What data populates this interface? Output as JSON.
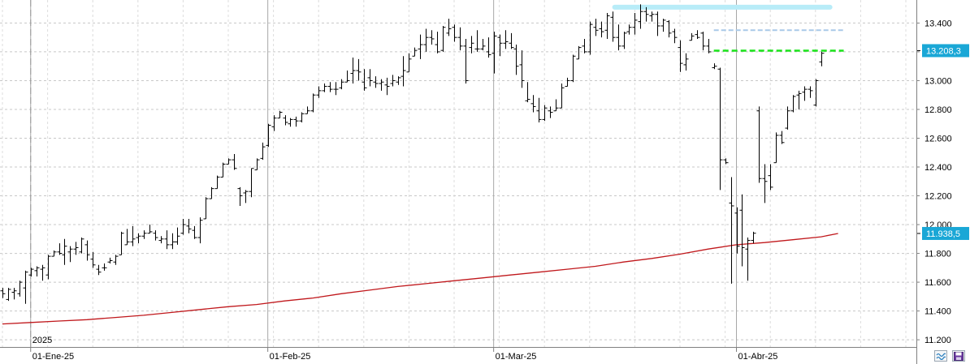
{
  "chart_data": {
    "type": "ohlc",
    "y_ticks": [
      "13.400",
      "13.200",
      "13.000",
      "12.800",
      "12.600",
      "12.400",
      "12.200",
      "12.000",
      "11.800",
      "11.600",
      "11.400",
      "11.200"
    ],
    "y_tick_values": [
      13400,
      13200,
      13000,
      12800,
      12600,
      12400,
      12200,
      12000,
      11800,
      11600,
      11400,
      11200
    ],
    "ylim": [
      11150,
      13560
    ],
    "x_labels": [
      {
        "text": "01-Ene-25",
        "bar": 5
      },
      {
        "text": "01-Feb-25",
        "bar": 47
      },
      {
        "text": "01-Mar-25",
        "bar": 87
      },
      {
        "text": "01-Abr-25",
        "bar": 130
      }
    ],
    "year_label": {
      "text": "2025",
      "bar": 5
    },
    "bar_count": 160,
    "ohlc": [
      [
        0,
        11540,
        11560,
        11490,
        11520
      ],
      [
        1,
        11480,
        11560,
        11470,
        11550
      ],
      [
        2,
        11530,
        11560,
        11480,
        11540
      ],
      [
        3,
        11520,
        11610,
        11500,
        11600
      ],
      [
        4,
        11560,
        11680,
        11450,
        11670
      ],
      [
        5,
        11650,
        11700,
        11640,
        11690
      ],
      [
        6,
        11680,
        11710,
        11640,
        11700
      ],
      [
        7,
        11690,
        11720,
        11610,
        11700
      ],
      [
        8,
        11650,
        11790,
        11620,
        11780
      ],
      [
        9,
        11780,
        11820,
        11780,
        11810
      ],
      [
        10,
        11810,
        11870,
        11790,
        11800
      ],
      [
        11,
        11790,
        11900,
        11720,
        11850
      ],
      [
        12,
        11810,
        11850,
        11740,
        11830
      ],
      [
        13,
        11830,
        11880,
        11790,
        11840
      ],
      [
        14,
        11810,
        11910,
        11800,
        11900
      ],
      [
        15,
        11860,
        11890,
        11750,
        11790
      ],
      [
        16,
        11760,
        11810,
        11700,
        11720
      ],
      [
        17,
        11690,
        11720,
        11650,
        11670
      ],
      [
        18,
        11700,
        11730,
        11680,
        11700
      ],
      [
        19,
        11740,
        11770,
        11730,
        11750
      ],
      [
        20,
        11740,
        11790,
        11720,
        11780
      ],
      [
        21,
        11790,
        11950,
        11790,
        11940
      ],
      [
        22,
        11860,
        11970,
        11860,
        11880
      ],
      [
        23,
        11880,
        11990,
        11850,
        11900
      ],
      [
        24,
        11910,
        11940,
        11870,
        11920
      ],
      [
        25,
        11920,
        11960,
        11900,
        11940
      ],
      [
        26,
        11940,
        12000,
        11940,
        11950
      ],
      [
        27,
        11940,
        11960,
        11890,
        11910
      ],
      [
        28,
        11890,
        11920,
        11870,
        11900
      ],
      [
        29,
        11900,
        11960,
        11830,
        11860
      ],
      [
        30,
        11860,
        11940,
        11830,
        11880
      ],
      [
        31,
        11880,
        11980,
        11860,
        11920
      ],
      [
        32,
        11940,
        12040,
        11930,
        12000
      ],
      [
        33,
        11990,
        12040,
        11940,
        11970
      ],
      [
        34,
        11960,
        11990,
        11900,
        11910
      ],
      [
        35,
        11910,
        12050,
        11870,
        12030
      ],
      [
        36,
        12040,
        12190,
        12040,
        12180
      ],
      [
        37,
        12180,
        12260,
        12180,
        12250
      ],
      [
        38,
        12250,
        12340,
        12250,
        12330
      ],
      [
        39,
        12330,
        12430,
        12330,
        12420
      ],
      [
        40,
        12420,
        12460,
        12420,
        12450
      ],
      [
        41,
        12450,
        12490,
        12380,
        12390
      ],
      [
        42,
        12250,
        12260,
        12130,
        12200
      ],
      [
        43,
        12220,
        12240,
        12150,
        12230
      ],
      [
        44,
        12230,
        12390,
        12190,
        12390
      ],
      [
        45,
        12380,
        12460,
        12380,
        12450
      ],
      [
        46,
        12460,
        12570,
        12450,
        12540
      ],
      [
        47,
        12550,
        12700,
        12540,
        12690
      ],
      [
        48,
        12680,
        12760,
        12650,
        12740
      ],
      [
        49,
        12740,
        12790,
        12740,
        12780
      ],
      [
        50,
        12740,
        12760,
        12690,
        12710
      ],
      [
        51,
        12700,
        12740,
        12680,
        12730
      ],
      [
        52,
        12730,
        12750,
        12680,
        12720
      ],
      [
        53,
        12720,
        12780,
        12710,
        12770
      ],
      [
        54,
        12770,
        12820,
        12770,
        12790
      ],
      [
        55,
        12790,
        12910,
        12780,
        12900
      ],
      [
        56,
        12900,
        12960,
        12880,
        12930
      ],
      [
        57,
        12930,
        12980,
        12920,
        12960
      ],
      [
        58,
        12960,
        12990,
        12920,
        12940
      ],
      [
        59,
        12940,
        12990,
        12900,
        12940
      ],
      [
        60,
        12950,
        13010,
        12940,
        12990
      ],
      [
        61,
        12990,
        13070,
        12990,
        13000
      ],
      [
        62,
        13050,
        13160,
        12980,
        13070
      ],
      [
        63,
        13070,
        13150,
        13000,
        13060
      ],
      [
        64,
        12990,
        13080,
        12930,
        12950
      ],
      [
        65,
        13020,
        13080,
        12960,
        13000
      ],
      [
        66,
        12990,
        13030,
        12950,
        12980
      ],
      [
        67,
        12980,
        13010,
        12930,
        12990
      ],
      [
        68,
        12970,
        13020,
        12900,
        12960
      ],
      [
        69,
        12980,
        13040,
        12960,
        13000
      ],
      [
        70,
        12990,
        13030,
        12970,
        13020
      ],
      [
        71,
        13030,
        13170,
        12960,
        13070
      ],
      [
        72,
        13060,
        13190,
        13060,
        13150
      ],
      [
        73,
        13170,
        13230,
        13170,
        13210
      ],
      [
        74,
        13220,
        13320,
        13150,
        13250
      ],
      [
        75,
        13250,
        13360,
        13200,
        13300
      ],
      [
        76,
        13300,
        13350,
        13250,
        13290
      ],
      [
        77,
        13250,
        13340,
        13190,
        13200
      ],
      [
        78,
        13210,
        13380,
        13200,
        13370
      ],
      [
        79,
        13330,
        13430,
        13310,
        13360
      ],
      [
        80,
        13370,
        13390,
        13270,
        13300
      ],
      [
        81,
        13300,
        13370,
        13210,
        13240
      ],
      [
        82,
        13240,
        13290,
        12980,
        13000
      ],
      [
        83,
        13230,
        13310,
        13190,
        13260
      ],
      [
        84,
        13220,
        13350,
        13200,
        13220
      ],
      [
        85,
        13220,
        13290,
        13210,
        13240
      ],
      [
        86,
        13200,
        13300,
        13160,
        13180
      ],
      [
        87,
        13190,
        13340,
        13050,
        13310
      ],
      [
        88,
        13300,
        13320,
        13170,
        13260
      ],
      [
        89,
        13260,
        13350,
        13220,
        13270
      ],
      [
        90,
        13260,
        13330,
        13220,
        13230
      ],
      [
        91,
        13220,
        13250,
        13040,
        13100
      ],
      [
        92,
        13110,
        13210,
        12950,
        13000
      ],
      [
        93,
        12860,
        12990,
        12850,
        12870
      ],
      [
        94,
        12840,
        12900,
        12780,
        12820
      ],
      [
        95,
        12790,
        12880,
        12710,
        12730
      ],
      [
        96,
        12730,
        12830,
        12720,
        12810
      ],
      [
        97,
        12790,
        12820,
        12740,
        12780
      ],
      [
        98,
        12790,
        12870,
        12790,
        12810
      ],
      [
        99,
        12810,
        12980,
        12810,
        12950
      ],
      [
        100,
        12960,
        13020,
        12960,
        13000
      ],
      [
        101,
        13000,
        13180,
        12990,
        13170
      ],
      [
        102,
        13150,
        13240,
        13150,
        13230
      ],
      [
        103,
        13240,
        13290,
        13190,
        13200
      ],
      [
        104,
        13200,
        13410,
        13180,
        13390
      ],
      [
        105,
        13370,
        13430,
        13310,
        13350
      ],
      [
        106,
        13360,
        13410,
        13300,
        13340
      ],
      [
        107,
        13350,
        13470,
        13290,
        13450
      ],
      [
        108,
        13440,
        13480,
        13270,
        13300
      ],
      [
        109,
        13300,
        13390,
        13210,
        13240
      ],
      [
        110,
        13240,
        13340,
        13220,
        13330
      ],
      [
        111,
        13340,
        13390,
        13320,
        13370
      ],
      [
        112,
        13370,
        13470,
        13320,
        13420
      ],
      [
        113,
        13410,
        13530,
        13360,
        13480
      ],
      [
        114,
        13480,
        13510,
        13410,
        13460
      ],
      [
        115,
        13450,
        13480,
        13410,
        13460
      ],
      [
        116,
        13460,
        13480,
        13310,
        13380
      ],
      [
        117,
        13380,
        13430,
        13340,
        13420
      ],
      [
        118,
        13410,
        13420,
        13300,
        13330
      ],
      [
        119,
        13340,
        13360,
        13260,
        13300
      ],
      [
        120,
        13230,
        13280,
        13060,
        13120
      ],
      [
        121,
        13110,
        13190,
        13070,
        13150
      ],
      [
        122,
        13280,
        13330,
        13280,
        13310
      ],
      [
        123,
        13320,
        13350,
        13290,
        13300
      ],
      [
        124,
        13330,
        13340,
        13210,
        13240
      ],
      [
        125,
        13240,
        13290,
        13190,
        13200
      ],
      [
        126,
        13090,
        13120,
        13080,
        13100
      ],
      [
        127,
        13080,
        13090,
        12240,
        12450
      ],
      [
        128,
        12450,
        12460,
        12420,
        12430
      ],
      [
        129,
        12150,
        12330,
        11590,
        12130
      ],
      [
        130,
        12080,
        12120,
        11800,
        11850
      ],
      [
        131,
        12100,
        12210,
        11710,
        11840
      ],
      [
        132,
        11830,
        11910,
        11610,
        11890
      ],
      [
        133,
        11890,
        11950,
        11870,
        11940
      ],
      [
        134,
        12790,
        12820,
        12290,
        12320
      ],
      [
        135,
        12320,
        12420,
        12150,
        12300
      ],
      [
        136,
        12340,
        12420,
        12240,
        12260
      ],
      [
        137,
        12430,
        12640,
        12430,
        12620
      ],
      [
        138,
        12620,
        12650,
        12560,
        12570
      ],
      [
        139,
        12670,
        12820,
        12660,
        12790
      ],
      [
        140,
        12790,
        12900,
        12780,
        12890
      ],
      [
        141,
        12900,
        12930,
        12800,
        12910
      ],
      [
        142,
        12920,
        12960,
        12860,
        12940
      ],
      [
        143,
        12940,
        12960,
        12880,
        12930
      ],
      [
        144,
        12830,
        13010,
        12820,
        13000
      ],
      [
        145,
        13130,
        13200,
        13100,
        13190
      ]
    ],
    "moving_average": [
      [
        0,
        11310
      ],
      [
        5,
        11320
      ],
      [
        10,
        11330
      ],
      [
        15,
        11340
      ],
      [
        20,
        11355
      ],
      [
        25,
        11370
      ],
      [
        30,
        11390
      ],
      [
        35,
        11410
      ],
      [
        40,
        11430
      ],
      [
        45,
        11445
      ],
      [
        50,
        11470
      ],
      [
        55,
        11490
      ],
      [
        60,
        11520
      ],
      [
        65,
        11545
      ],
      [
        70,
        11570
      ],
      [
        75,
        11590
      ],
      [
        80,
        11610
      ],
      [
        85,
        11630
      ],
      [
        90,
        11650
      ],
      [
        95,
        11670
      ],
      [
        100,
        11690
      ],
      [
        105,
        11710
      ],
      [
        110,
        11740
      ],
      [
        115,
        11765
      ],
      [
        120,
        11795
      ],
      [
        125,
        11830
      ],
      [
        130,
        11860
      ],
      [
        135,
        11875
      ],
      [
        140,
        11895
      ],
      [
        145,
        11915
      ],
      [
        148,
        11938.5
      ]
    ],
    "levels": [
      {
        "name": "cyan-band",
        "value": 13510,
        "start_bar": 108,
        "end_bar": 147,
        "color": "#b8ecf8",
        "style": "band"
      },
      {
        "name": "light-blue-dashed",
        "value": 13350,
        "start_bar": 126,
        "end_bar": 149,
        "color": "#a9c9e8",
        "style": "dashed"
      },
      {
        "name": "green-dashed",
        "value": 13208.3,
        "start_bar": 126,
        "end_bar": 149,
        "color": "#19e319",
        "style": "dashed"
      }
    ],
    "badges": [
      {
        "text": "13.208,3",
        "value": 13208.3,
        "color": "#1aa7d6"
      },
      {
        "text": "11.938,5",
        "value": 11938.5,
        "color": "#1aa7d6"
      }
    ],
    "colors": {
      "bars": "#000000",
      "moving_average": "#c0181c",
      "grid": "#c8c8c8",
      "axis": "#808080"
    }
  },
  "icons": {
    "scale_toggle": "wave-icon",
    "save": "save-icon"
  }
}
